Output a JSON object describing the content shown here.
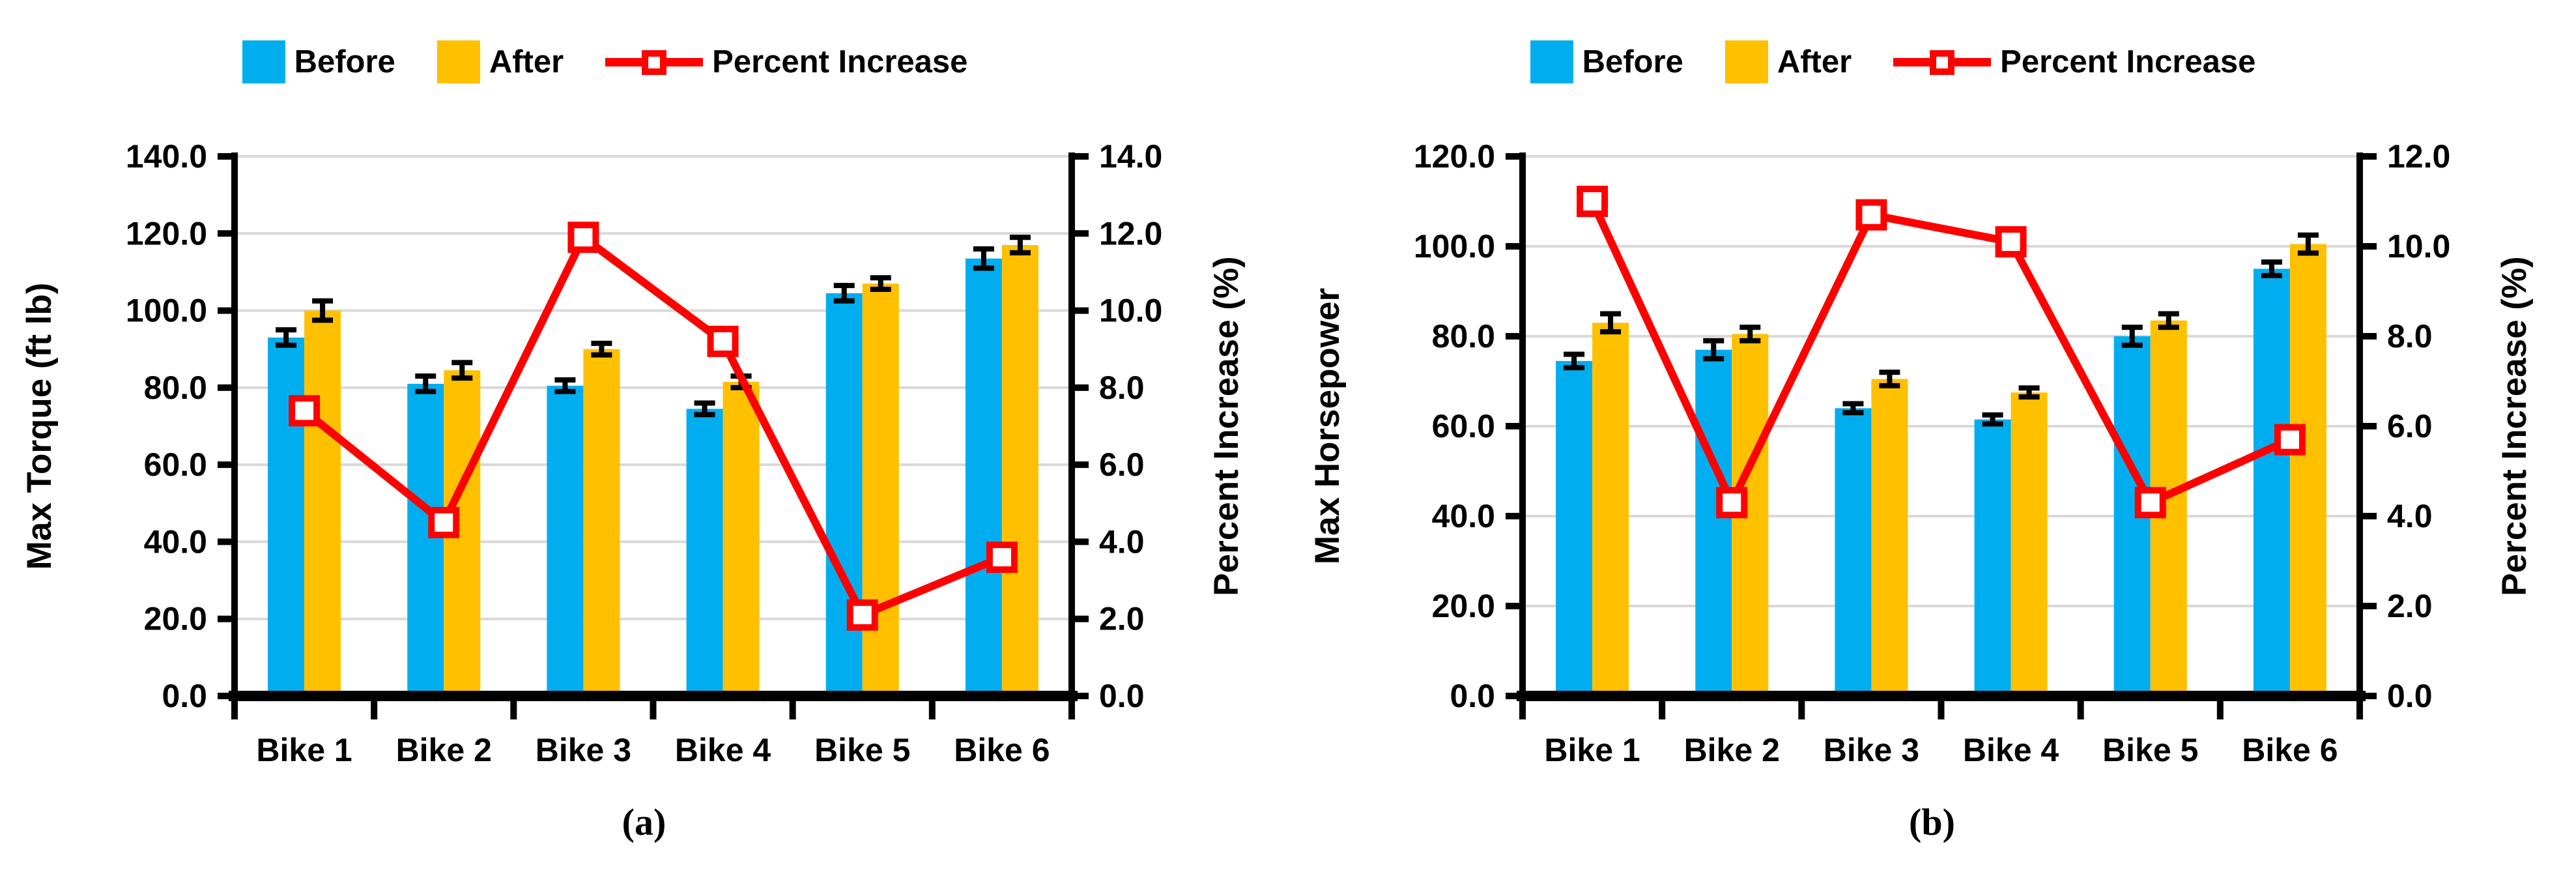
{
  "styles": {
    "background": "#FFFFFF",
    "grid_color": "#D9D9D9",
    "axis_color": "#000000",
    "error_bar_color": "#000000",
    "marker_fill": "#FFFFFF"
  },
  "chart_data": [
    {
      "type": "bar",
      "panel": "a",
      "caption": "(a)",
      "legend_position": "top",
      "grid": true,
      "categories": [
        "Bike 1",
        "Bike 2",
        "Bike 3",
        "Bike 4",
        "Bike 5",
        "Bike 6"
      ],
      "series": [
        {
          "name": "Before",
          "type": "bar",
          "axis": "left",
          "color": "#00AEEF",
          "values": [
            93.0,
            81.0,
            80.5,
            74.5,
            104.5,
            113.5
          ],
          "error_bars": [
            2.0,
            2.0,
            1.5,
            1.5,
            2.0,
            2.5
          ]
        },
        {
          "name": "After",
          "type": "bar",
          "axis": "left",
          "color": "#FFC000",
          "values": [
            100.0,
            84.5,
            90.0,
            81.5,
            107.0,
            117.0
          ],
          "error_bars": [
            2.5,
            2.0,
            1.5,
            1.5,
            1.5,
            2.0
          ]
        },
        {
          "name": "Percent Increase",
          "type": "line",
          "axis": "right",
          "color": "#FF0000",
          "marker": "open-square",
          "values": [
            7.4,
            4.5,
            11.9,
            9.2,
            2.1,
            3.6
          ]
        }
      ],
      "left_axis": {
        "label": "Max Torque (ft lb)",
        "min": 0,
        "max": 140,
        "step": 20,
        "ticks": [
          "0.0",
          "20.0",
          "40.0",
          "60.0",
          "80.0",
          "100.0",
          "120.0",
          "140.0"
        ]
      },
      "right_axis": {
        "label": "Percent Increase (%)",
        "min": 0,
        "max": 14,
        "step": 2,
        "ticks": [
          "0.0",
          "2.0",
          "4.0",
          "6.0",
          "8.0",
          "10.0",
          "12.0",
          "14.0"
        ]
      }
    },
    {
      "type": "bar",
      "panel": "b",
      "caption": "(b)",
      "legend_position": "top",
      "grid": true,
      "categories": [
        "Bike 1",
        "Bike 2",
        "Bike 3",
        "Bike 4",
        "Bike 5",
        "Bike 6"
      ],
      "series": [
        {
          "name": "Before",
          "type": "bar",
          "axis": "left",
          "color": "#00AEEF",
          "values": [
            74.5,
            77.0,
            64.0,
            61.5,
            80.0,
            95.0
          ],
          "error_bars": [
            1.5,
            2.0,
            1.0,
            1.0,
            2.0,
            1.5
          ]
        },
        {
          "name": "After",
          "type": "bar",
          "axis": "left",
          "color": "#FFC000",
          "values": [
            83.0,
            80.5,
            70.5,
            67.5,
            83.5,
            100.5
          ],
          "error_bars": [
            2.0,
            1.5,
            1.5,
            1.0,
            1.5,
            2.0
          ]
        },
        {
          "name": "Percent Increase",
          "type": "line",
          "axis": "right",
          "color": "#FF0000",
          "marker": "open-square",
          "values": [
            11.0,
            4.3,
            10.7,
            10.1,
            4.3,
            5.7
          ]
        }
      ],
      "left_axis": {
        "label": "Max Horsepower",
        "min": 0,
        "max": 120,
        "step": 20,
        "ticks": [
          "0.0",
          "20.0",
          "40.0",
          "60.0",
          "80.0",
          "100.0",
          "120.0"
        ]
      },
      "right_axis": {
        "label": "Percent Increase (%)",
        "min": 0,
        "max": 12,
        "step": 2,
        "ticks": [
          "0.0",
          "2.0",
          "4.0",
          "6.0",
          "8.0",
          "10.0",
          "12.0"
        ]
      }
    }
  ]
}
